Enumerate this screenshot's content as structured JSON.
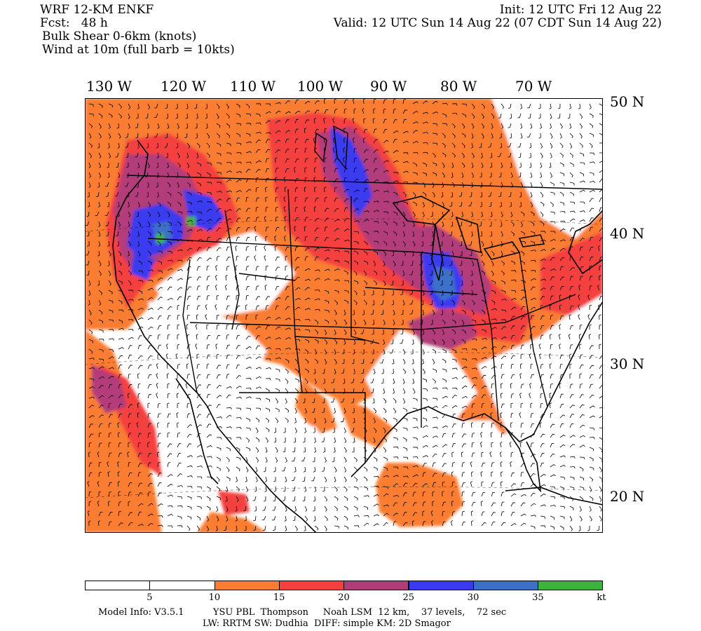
{
  "header": {
    "model": "WRF 12-KM ENKF",
    "fcst": "Fcst:   48 h",
    "field1": "Bulk Shear 0-6km (knots)",
    "field2": "Wind at 10m (full barb = 10kts)",
    "init": "Init: 12 UTC Fri 12 Aug 22",
    "valid": "Valid: 12 UTC Sun 14 Aug 22 (07 CDT Sun 14 Aug 22)"
  },
  "lon_labels": [
    "130 W",
    "120 W",
    "110 W",
    "100 W",
    "90 W",
    "80 W",
    "70 W"
  ],
  "lat_labels": [
    "50 N",
    "40 N",
    "30 N",
    "20 N"
  ],
  "colorbar": {
    "colors": [
      "#ffffff",
      "#ffffff",
      "#fa7d32",
      "#f54040",
      "#b23c7a",
      "#3a3af0",
      "#3c6fc8",
      "#3cb43c"
    ],
    "labels": [
      "5",
      "10",
      "15",
      "20",
      "25",
      "30",
      "35",
      "kt"
    ]
  },
  "footer": {
    "line1": "Model Info: V3.5.1          YSU PBL  Thompson     Noah LSM  12 km,    37 levels,    72 sec",
    "line2": "LW: RRTM SW: Dudhia  DIFF: simple KM: 2D Smagor"
  }
}
